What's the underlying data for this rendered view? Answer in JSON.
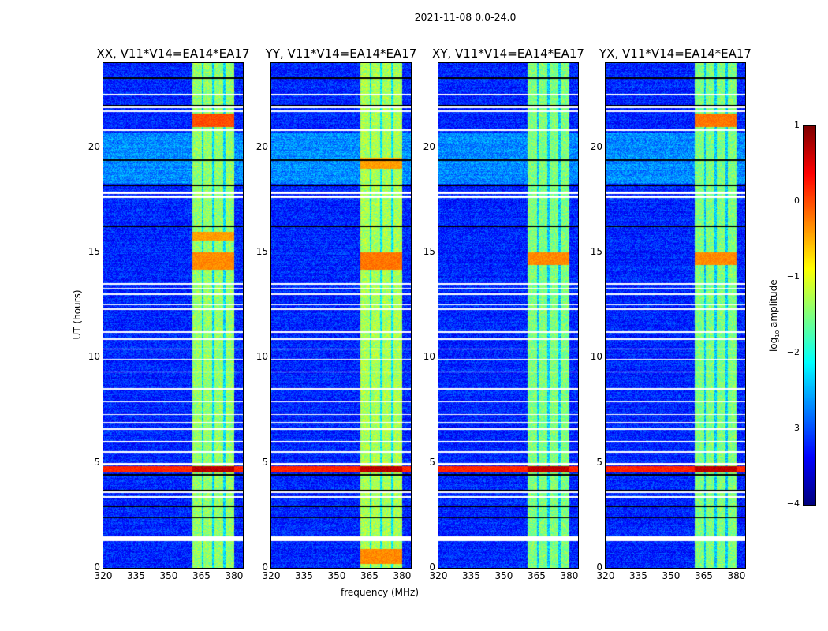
{
  "chart_data": {
    "type": "heatmap",
    "title": "2021-11-08 0.0-24.0",
    "xlabel": "frequency (MHz)",
    "ylabel": "UT (hours)",
    "xlim": [
      320,
      384
    ],
    "ylim": [
      0,
      24
    ],
    "xticks": [
      "320",
      "335",
      "350",
      "365",
      "380"
    ],
    "xtick_values": [
      320,
      335,
      350,
      365,
      380
    ],
    "yticks": [
      "0",
      "5",
      "10",
      "15",
      "20"
    ],
    "ytick_values": [
      0,
      5,
      10,
      15,
      20
    ],
    "panels": [
      {
        "title": "XX, V11*V14=EA14*EA17",
        "band_level": -1.4,
        "band_hot": [
          [
            21.0,
            21.6,
            0.0
          ],
          [
            14.2,
            15.0,
            -0.3
          ],
          [
            15.6,
            16.0,
            -0.4
          ],
          [
            4.55,
            4.85,
            0.7
          ]
        ]
      },
      {
        "title": "YY, V11*V14=EA14*EA17",
        "band_level": -1.3,
        "band_hot": [
          [
            14.2,
            15.0,
            -0.2
          ],
          [
            19.0,
            19.5,
            -0.4
          ],
          [
            0.2,
            0.9,
            -0.3
          ],
          [
            4.55,
            4.85,
            0.7
          ]
        ]
      },
      {
        "title": "XY, V11*V14=EA14*EA17",
        "band_level": -1.5,
        "band_hot": [
          [
            14.4,
            15.0,
            -0.3
          ],
          [
            4.55,
            4.85,
            0.7
          ]
        ]
      },
      {
        "title": "YX, V11*V14=EA14*EA17",
        "band_level": -1.5,
        "band_hot": [
          [
            14.4,
            15.0,
            -0.3
          ],
          [
            21.0,
            21.6,
            -0.2
          ],
          [
            4.55,
            4.85,
            0.7
          ]
        ]
      }
    ],
    "band_mhz": [
      360.5,
      380
    ],
    "band_gaps_mhz": [
      365.4,
      370.2,
      375.2
    ],
    "background_level": -3.2,
    "elevated_background_hours": [
      18.3,
      20.7
    ],
    "flagged_hours": [
      [
        1.3,
        1.5
      ],
      [
        3.35,
        3.45
      ],
      [
        3.58,
        3.66
      ],
      [
        4.9,
        5.0
      ],
      [
        5.5,
        5.55
      ],
      [
        6.0,
        6.05
      ],
      [
        6.6,
        6.65
      ],
      [
        6.9,
        6.95
      ],
      [
        7.3,
        7.35
      ],
      [
        7.9,
        7.95
      ],
      [
        8.5,
        8.55
      ],
      [
        9.3,
        9.35
      ],
      [
        9.9,
        9.95
      ],
      [
        10.4,
        10.45
      ],
      [
        10.85,
        10.95
      ],
      [
        11.2,
        11.25
      ],
      [
        12.3,
        12.35
      ],
      [
        12.5,
        12.55
      ],
      [
        13.0,
        13.05
      ],
      [
        13.3,
        13.35
      ],
      [
        13.5,
        13.55
      ],
      [
        17.6,
        17.7
      ],
      [
        17.8,
        17.9
      ],
      [
        20.8,
        20.85
      ],
      [
        21.7,
        21.75
      ],
      [
        21.9,
        21.95
      ],
      [
        22.5,
        22.55
      ]
    ],
    "dead_hours": [
      2.4,
      2.95,
      3.7,
      4.45,
      16.25,
      18.2,
      19.4,
      22.0,
      23.3
    ],
    "colorbar": {
      "label": "log10 amplitude",
      "label_base": "log",
      "label_sub": "10",
      "label_rest": " amplitude",
      "range": [
        -4,
        1
      ],
      "ticks": [
        "1",
        "0",
        "−1",
        "−2",
        "−3",
        "−4"
      ],
      "tick_values": [
        1,
        0,
        -1,
        -2,
        -3,
        -4
      ],
      "colormap": "jet"
    }
  }
}
